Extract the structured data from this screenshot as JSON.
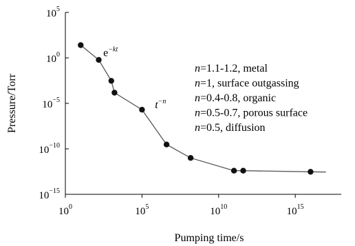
{
  "chart_data": {
    "type": "line",
    "xlabel": "Pumping time/s",
    "ylabel": "Pressure/Torr",
    "x_scale": "log",
    "y_scale": "log",
    "xlim": [
      1,
      1e+18
    ],
    "ylim": [
      1e-15,
      100000.0
    ],
    "x_ticks": [
      {
        "value": 1,
        "base": "10",
        "exp": "0"
      },
      {
        "value": 100000.0,
        "base": "10",
        "exp": "5"
      },
      {
        "value": 10000000000.0,
        "base": "10",
        "exp": "10"
      },
      {
        "value": 1000000000000000.0,
        "base": "10",
        "exp": "15"
      }
    ],
    "y_ticks": [
      {
        "value": 100000.0,
        "base": "10",
        "exp": "5"
      },
      {
        "value": 1,
        "base": "10",
        "exp": "0"
      },
      {
        "value": 1e-05,
        "base": "10",
        "exp": "−5"
      },
      {
        "value": 1e-10,
        "base": "10",
        "exp": "−10"
      },
      {
        "value": 1e-15,
        "base": "10",
        "exp": "−15"
      }
    ],
    "series": [
      {
        "x": [
          10,
          150,
          1000,
          1600,
          100000,
          4000000,
          150000000,
          100000000000,
          400000000000,
          10000000000000000,
          100000000000000000
        ],
        "y": [
          25,
          0.6,
          0.003,
          0.00015,
          2e-06,
          3e-10,
          1e-11,
          4e-13,
          4e-13,
          3e-13,
          2.8e-13
        ],
        "markers": [
          true,
          true,
          true,
          true,
          true,
          true,
          true,
          true,
          true,
          true,
          false
        ]
      }
    ],
    "annotations": {
      "exp_label": {
        "base": "e",
        "exp": "−kt",
        "x": 300,
        "y": 1.5
      },
      "power_label": {
        "base": "t",
        "exp": "−n",
        "x": 700000,
        "y": 3e-06
      },
      "lines": [
        {
          "n": "n",
          "text": "=1.1-1.2, metal"
        },
        {
          "n": "n",
          "text": "=1, surface outgassing"
        },
        {
          "n": "n",
          "text": "=0.4-0.8, organic"
        },
        {
          "n": "n",
          "text": "=0.5-0.7, porous surface"
        },
        {
          "n": "n",
          "text": "=0.5, diffusion"
        }
      ]
    },
    "grid": false,
    "line_color": "#555555",
    "marker_color": "#111111"
  }
}
